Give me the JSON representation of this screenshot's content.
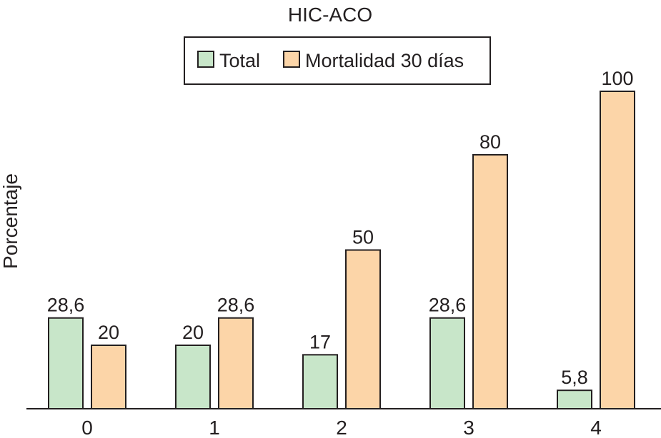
{
  "chart_data": {
    "type": "bar",
    "title": "HIC-ACO",
    "xlabel": "",
    "ylabel": "Porcentaje",
    "categories": [
      "0",
      "1",
      "2",
      "3",
      "4"
    ],
    "series": [
      {
        "name": "Total",
        "values": [
          28.6,
          20,
          17,
          28.6,
          5.8
        ],
        "labels": [
          "28,6",
          "20",
          "17",
          "28,6",
          "5,8"
        ],
        "color": "#c8e6c9"
      },
      {
        "name": "Mortalidad 30 días",
        "values": [
          20,
          28.6,
          50,
          80,
          100
        ],
        "labels": [
          "20",
          "28,6",
          "50",
          "80",
          "100"
        ],
        "color": "#fcd5a8"
      }
    ],
    "ylim": [
      0,
      100
    ],
    "grid": false,
    "legend_position": "top-center",
    "bar_outline_color": "#231f20"
  }
}
